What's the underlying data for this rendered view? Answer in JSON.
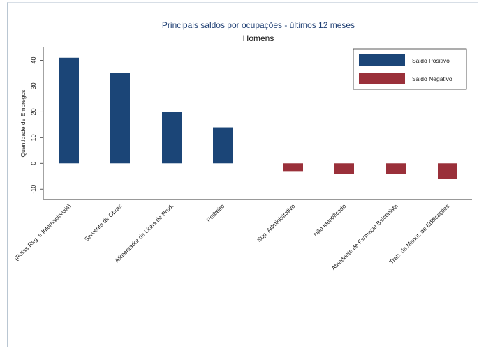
{
  "chart_data": {
    "type": "bar",
    "title": "Principais saldos por ocupações - últimos 12 meses",
    "subtitle": "Homens",
    "ylabel": "Quantidade de Empregos",
    "xlabel": "",
    "ylim": [
      -14,
      45
    ],
    "yticks": [
      -10,
      0,
      10,
      20,
      30,
      40
    ],
    "ytick_labels": [
      "-10",
      "0",
      "10",
      "20",
      "30",
      "40"
    ],
    "grid": false,
    "legend_position": "top-right",
    "categories": [
      "(Rotas Reg. e Internacionais)",
      "Servente de Obras",
      "Alimentador de Linha de Prod.",
      "Pedreiro",
      "Sup. Administrativo",
      "Não Identificado",
      "Atendente de Farmacia Balconista",
      "Trab. da Manut. de Edificações"
    ],
    "series": [
      {
        "name": "Saldo Positivo",
        "color": "#1b4577",
        "values": [
          41,
          35,
          20,
          14,
          null,
          null,
          null,
          null
        ]
      },
      {
        "name": "Saldo Negativo",
        "color": "#9a303a",
        "values": [
          null,
          null,
          null,
          null,
          -3,
          -4,
          -4,
          -6
        ]
      }
    ]
  }
}
